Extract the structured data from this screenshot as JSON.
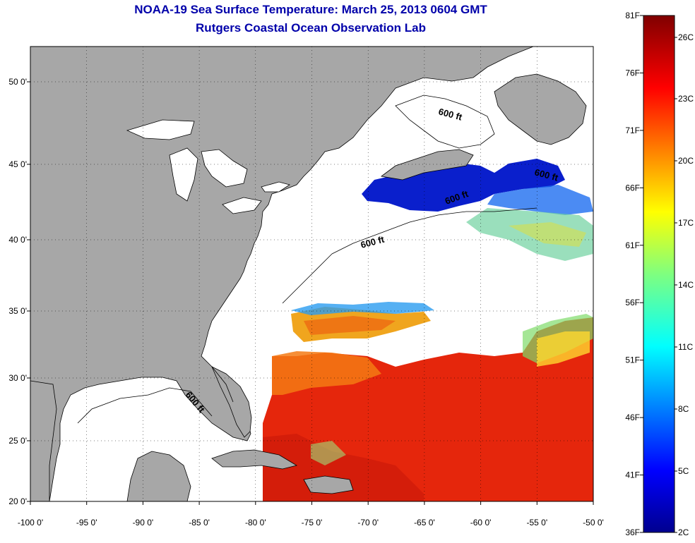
{
  "title": {
    "line1": "NOAA-19 Sea Surface Temperature:  March 25, 2013 0604 GMT",
    "line2": "Rutgers Coastal Ocean Observation Lab"
  },
  "map": {
    "lon_ticks": [
      "-100 0'",
      "-95 0'",
      "-90 0'",
      "-85 0'",
      "-80 0'",
      "-75 0'",
      "-70 0'",
      "-65 0'",
      "-60 0'",
      "-55 0'",
      "-50 0'"
    ],
    "lat_ticks": [
      "50 0'",
      "45 0'",
      "40 0'",
      "35 0'",
      "30 0'",
      "25 0'",
      "20 0'"
    ],
    "depth_labels": [
      "600 ft",
      "600 ft",
      "600 ft",
      "600 ft",
      "600 ft"
    ],
    "colors": {
      "land": "#a7a7a7",
      "cloud": "#ffffff",
      "warm": "#e5200a",
      "cold": "#0a1fcc",
      "gray_bg": "#a7a7a7"
    }
  },
  "colorbar": {
    "left_labels": [
      "81F",
      "76F",
      "71F",
      "66F",
      "61F",
      "56F",
      "51F",
      "46F",
      "41F",
      "36F"
    ],
    "right_labels": [
      "26C",
      "23C",
      "20C",
      "17C",
      "14C",
      "11C",
      "8C",
      "5C",
      "2C"
    ],
    "colormap": "jet"
  }
}
